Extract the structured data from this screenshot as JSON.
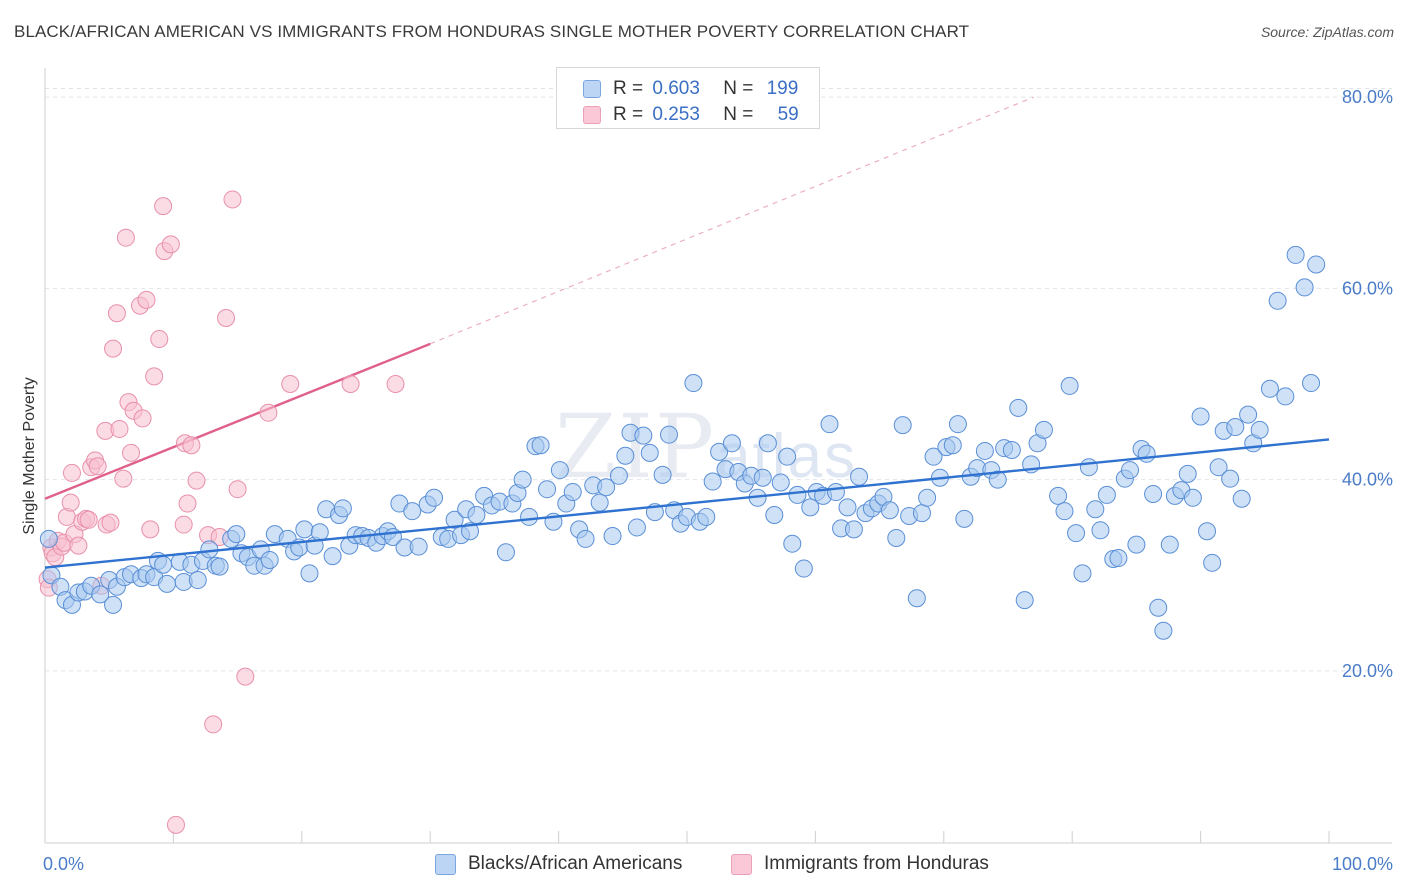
{
  "title": "BLACK/AFRICAN AMERICAN VS IMMIGRANTS FROM HONDURAS SINGLE MOTHER POVERTY CORRELATION CHART",
  "source": "Source: ZipAtlas.com",
  "watermark": {
    "main": "ZIP",
    "sub": "atlas"
  },
  "colors": {
    "blue_fill": "#a8c8f0",
    "blue_stroke": "#5a8fd6",
    "blue_line": "#2f72d0",
    "pink_fill": "#f8c0d0",
    "pink_stroke": "#e890aa",
    "pink_line": "#e0608a",
    "grid": "#e0e4ea",
    "tick_label": "#4a7cc7"
  },
  "legend_top": [
    {
      "r_label": "R =",
      "r_value": "0.603",
      "n_label": "N =",
      "n_value": "199"
    },
    {
      "r_label": "R =",
      "r_value": "0.253",
      "n_label": "N =",
      "n_value": "59"
    }
  ],
  "legend_bottom": [
    "Blacks/African Americans",
    "Immigrants from Honduras"
  ],
  "chart_data": {
    "type": "scatter",
    "title": "BLACK/AFRICAN AMERICAN VS IMMIGRANTS FROM HONDURAS SINGLE MOTHER POVERTY CORRELATION CHART",
    "xlabel": "",
    "ylabel": "Single Mother Poverty",
    "xlim": [
      0,
      100
    ],
    "ylim": [
      2,
      82
    ],
    "x_tick_labels": [
      {
        "x": 0,
        "label": "0.0%"
      },
      {
        "x": 100,
        "label": "100.0%"
      }
    ],
    "y_tick_labels": [
      {
        "y": 20,
        "label": "20.0%"
      },
      {
        "y": 40,
        "label": "40.0%"
      },
      {
        "y": 60,
        "label": "60.0%"
      },
      {
        "y": 80,
        "label": "80.0%"
      }
    ],
    "grid": true,
    "legend_placement": "bottom",
    "series": [
      {
        "name": "Blacks/African Americans",
        "trend": {
          "x0": 0,
          "y0": 30.8,
          "x1": 100,
          "y1": 44.2
        },
        "points": [
          [
            0.3,
            33.8
          ],
          [
            0.5,
            30
          ],
          [
            1.2,
            28.8
          ],
          [
            1.6,
            27.4
          ],
          [
            2.1,
            26.9
          ],
          [
            2.6,
            28.2
          ],
          [
            3.1,
            28.3
          ],
          [
            3.6,
            28.9
          ],
          [
            4.3,
            28
          ],
          [
            5,
            29.5
          ],
          [
            5.3,
            26.9
          ],
          [
            5.6,
            28.8
          ],
          [
            6.2,
            29.8
          ],
          [
            6.7,
            30.1
          ],
          [
            7.5,
            29.7
          ],
          [
            7.9,
            30.1
          ],
          [
            8.5,
            29.8
          ],
          [
            8.8,
            31.5
          ],
          [
            9.2,
            31.1
          ],
          [
            9.5,
            29.1
          ],
          [
            10.5,
            31.4
          ],
          [
            10.8,
            29.3
          ],
          [
            11.4,
            31.1
          ],
          [
            11.9,
            29.5
          ],
          [
            12.3,
            31.5
          ],
          [
            12.8,
            32.7
          ],
          [
            13.3,
            31
          ],
          [
            13.6,
            30.9
          ],
          [
            14.5,
            33.8
          ],
          [
            14.9,
            34.3
          ],
          [
            15.3,
            32.3
          ],
          [
            15.8,
            31.9
          ],
          [
            16.3,
            31
          ],
          [
            16.8,
            32.7
          ],
          [
            17.1,
            31
          ],
          [
            17.5,
            31.6
          ],
          [
            17.9,
            34.3
          ],
          [
            18.9,
            33.8
          ],
          [
            19.4,
            32.5
          ],
          [
            19.8,
            32.9
          ],
          [
            20.2,
            34.8
          ],
          [
            20.6,
            30.2
          ],
          [
            21,
            33.1
          ],
          [
            21.4,
            34.5
          ],
          [
            21.9,
            36.9
          ],
          [
            22.4,
            32
          ],
          [
            22.9,
            36.3
          ],
          [
            23.2,
            37
          ],
          [
            23.7,
            33.1
          ],
          [
            24.2,
            34.2
          ],
          [
            24.7,
            34.1
          ],
          [
            25.2,
            33.9
          ],
          [
            25.8,
            33.4
          ],
          [
            26.3,
            34.1
          ],
          [
            26.7,
            34.6
          ],
          [
            27.1,
            34
          ],
          [
            27.6,
            37.5
          ],
          [
            28,
            32.9
          ],
          [
            28.6,
            36.7
          ],
          [
            29.1,
            33
          ],
          [
            29.8,
            37.4
          ],
          [
            30.3,
            38.1
          ],
          [
            30.9,
            34
          ],
          [
            31.4,
            33.8
          ],
          [
            31.9,
            35.8
          ],
          [
            32.4,
            34.2
          ],
          [
            32.8,
            36.9
          ],
          [
            33.1,
            34.6
          ],
          [
            33.6,
            36.3
          ],
          [
            34.2,
            38.3
          ],
          [
            34.8,
            37.3
          ],
          [
            35.4,
            37.7
          ],
          [
            35.9,
            32.4
          ],
          [
            36.4,
            37.5
          ],
          [
            36.8,
            38.6
          ],
          [
            37.2,
            40
          ],
          [
            37.7,
            36.1
          ],
          [
            38.2,
            43.5
          ],
          [
            38.6,
            43.6
          ],
          [
            39.1,
            39
          ],
          [
            39.6,
            35.6
          ],
          [
            40.1,
            41
          ],
          [
            40.6,
            37.5
          ],
          [
            41.1,
            38.7
          ],
          [
            41.6,
            34.8
          ],
          [
            42.1,
            33.8
          ],
          [
            42.7,
            39.4
          ],
          [
            43.2,
            37.6
          ],
          [
            43.7,
            39.2
          ],
          [
            44.2,
            34.1
          ],
          [
            44.7,
            40.4
          ],
          [
            45.2,
            42.5
          ],
          [
            45.6,
            44.9
          ],
          [
            46.1,
            35
          ],
          [
            46.6,
            44.6
          ],
          [
            47.1,
            42.8
          ],
          [
            47.5,
            36.6
          ],
          [
            48.1,
            40.5
          ],
          [
            48.6,
            44.7
          ],
          [
            49,
            36.8
          ],
          [
            49.5,
            35.4
          ],
          [
            50,
            36.1
          ],
          [
            50.5,
            50.1
          ],
          [
            51,
            35.6
          ],
          [
            51.5,
            36.1
          ],
          [
            52,
            39.8
          ],
          [
            52.5,
            42.9
          ],
          [
            53,
            41.1
          ],
          [
            53.5,
            43.8
          ],
          [
            54,
            40.8
          ],
          [
            54.5,
            39.6
          ],
          [
            55,
            40.4
          ],
          [
            55.5,
            38.1
          ],
          [
            55.9,
            40.2
          ],
          [
            56.3,
            43.8
          ],
          [
            56.8,
            36.3
          ],
          [
            57.3,
            39.7
          ],
          [
            57.8,
            42.4
          ],
          [
            58.2,
            33.3
          ],
          [
            58.6,
            38.4
          ],
          [
            59.1,
            30.7
          ],
          [
            59.6,
            37.1
          ],
          [
            60.1,
            38.7
          ],
          [
            60.6,
            38.3
          ],
          [
            61.1,
            45.8
          ],
          [
            61.6,
            38.7
          ],
          [
            62,
            34.9
          ],
          [
            62.5,
            37.1
          ],
          [
            63,
            34.8
          ],
          [
            63.4,
            40.3
          ],
          [
            63.9,
            36.5
          ],
          [
            64.4,
            37
          ],
          [
            64.9,
            37.5
          ],
          [
            65.3,
            38.2
          ],
          [
            65.8,
            36.8
          ],
          [
            66.3,
            33.9
          ],
          [
            66.8,
            45.7
          ],
          [
            67.3,
            36.2
          ],
          [
            67.9,
            27.6
          ],
          [
            68.3,
            36.5
          ],
          [
            68.7,
            38.1
          ],
          [
            69.2,
            42.4
          ],
          [
            69.7,
            40.2
          ],
          [
            70.2,
            43.4
          ],
          [
            70.7,
            43.6
          ],
          [
            71.1,
            45.8
          ],
          [
            71.6,
            35.9
          ],
          [
            72.1,
            40.3
          ],
          [
            72.6,
            41.2
          ],
          [
            73.2,
            43
          ],
          [
            73.7,
            41
          ],
          [
            74.2,
            40
          ],
          [
            74.7,
            43.3
          ],
          [
            75.3,
            43.1
          ],
          [
            75.8,
            47.5
          ],
          [
            76.3,
            27.4
          ],
          [
            76.8,
            41.6
          ],
          [
            77.3,
            43.8
          ],
          [
            77.8,
            45.2
          ],
          [
            78.9,
            38.3
          ],
          [
            79.4,
            36.7
          ],
          [
            79.8,
            49.8
          ],
          [
            80.3,
            34.4
          ],
          [
            80.8,
            30.2
          ],
          [
            81.3,
            41.3
          ],
          [
            81.8,
            36.9
          ],
          [
            82.2,
            34.7
          ],
          [
            82.7,
            38.4
          ],
          [
            83.2,
            31.7
          ],
          [
            83.6,
            31.8
          ],
          [
            84.1,
            40.1
          ],
          [
            84.5,
            41
          ],
          [
            85,
            33.2
          ],
          [
            85.4,
            43.2
          ],
          [
            85.8,
            42.7
          ],
          [
            86.3,
            38.5
          ],
          [
            86.7,
            26.6
          ],
          [
            87.1,
            24.2
          ],
          [
            87.6,
            33.2
          ],
          [
            88,
            38.3
          ],
          [
            88.5,
            38.9
          ],
          [
            89,
            40.6
          ],
          [
            89.4,
            38.1
          ],
          [
            90,
            46.6
          ],
          [
            90.5,
            34.6
          ],
          [
            90.9,
            31.3
          ],
          [
            91.4,
            41.3
          ],
          [
            91.8,
            45.1
          ],
          [
            92.3,
            40.1
          ],
          [
            92.7,
            45.5
          ],
          [
            93.2,
            38
          ],
          [
            93.7,
            46.8
          ],
          [
            94.1,
            43.8
          ],
          [
            94.6,
            45.2
          ],
          [
            95.4,
            49.5
          ],
          [
            96.6,
            48.7
          ],
          [
            96,
            58.7
          ],
          [
            97.4,
            63.5
          ],
          [
            98.1,
            60.1
          ],
          [
            98.6,
            50.1
          ],
          [
            99,
            62.5
          ]
        ]
      },
      {
        "name": "Immigrants from Honduras",
        "trend": {
          "x0": 0,
          "y0": 38,
          "x1": 30,
          "y1": 54.2,
          "dash_x1": 77,
          "dash_y1": 80
        },
        "points": [
          [
            0.2,
            29.6
          ],
          [
            0.3,
            28.7
          ],
          [
            0.5,
            32.9
          ],
          [
            0.6,
            32.3
          ],
          [
            0.8,
            31.9
          ],
          [
            1,
            33.6
          ],
          [
            1.3,
            33
          ],
          [
            1.5,
            33.4
          ],
          [
            1.7,
            36.1
          ],
          [
            2,
            37.6
          ],
          [
            2.3,
            34.3
          ],
          [
            2.6,
            33.1
          ],
          [
            2.1,
            40.7
          ],
          [
            2.9,
            35.6
          ],
          [
            3.2,
            35.9
          ],
          [
            3.4,
            35.8
          ],
          [
            3.6,
            41.3
          ],
          [
            3.9,
            42
          ],
          [
            4.1,
            41.4
          ],
          [
            4.4,
            28.9
          ],
          [
            4.7,
            45.1
          ],
          [
            4.8,
            35.3
          ],
          [
            5.1,
            35.5
          ],
          [
            5.3,
            53.7
          ],
          [
            5.6,
            57.4
          ],
          [
            5.8,
            45.3
          ],
          [
            6.1,
            40.1
          ],
          [
            6.3,
            65.3
          ],
          [
            6.5,
            48.1
          ],
          [
            6.7,
            42.8
          ],
          [
            6.9,
            47.2
          ],
          [
            7.4,
            58.2
          ],
          [
            7.6,
            46.4
          ],
          [
            7.9,
            58.8
          ],
          [
            8.2,
            34.8
          ],
          [
            8.5,
            50.8
          ],
          [
            8.9,
            54.7
          ],
          [
            9.2,
            68.6
          ],
          [
            9.3,
            63.9
          ],
          [
            9.8,
            64.6
          ],
          [
            10.8,
            35.3
          ],
          [
            10.9,
            43.8
          ],
          [
            11.1,
            37.5
          ],
          [
            11.4,
            43.6
          ],
          [
            11.8,
            39.9
          ],
          [
            12.7,
            34.2
          ],
          [
            13.1,
            14.4
          ],
          [
            13.6,
            34
          ],
          [
            14.1,
            56.9
          ],
          [
            14.6,
            69.3
          ],
          [
            15,
            39
          ],
          [
            15.6,
            19.4
          ],
          [
            17.4,
            47
          ],
          [
            19.1,
            50
          ],
          [
            23.8,
            50
          ],
          [
            27.3,
            50
          ],
          [
            10.2,
            3.9
          ]
        ]
      }
    ]
  }
}
